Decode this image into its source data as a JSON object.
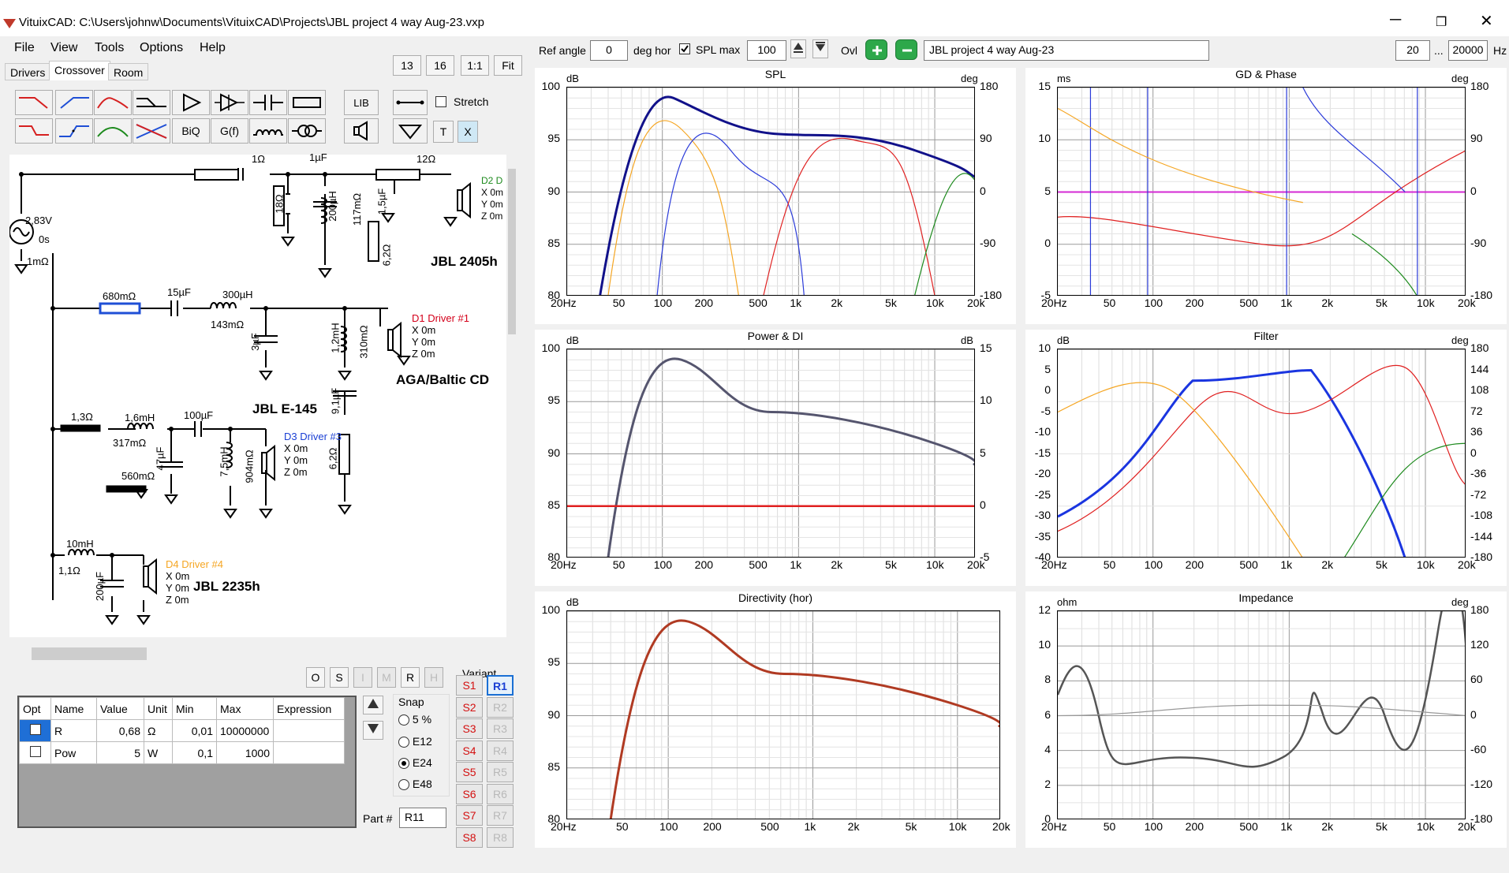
{
  "window": {
    "title": "VituixCAD: C:\\Users\\johnw\\Documents\\VituixCAD\\Projects\\JBL project 4 way Aug-23.vxp",
    "minimize": "─",
    "maximize": "❐",
    "close": "✕"
  },
  "menu": [
    "File",
    "View",
    "Tools",
    "Options",
    "Help"
  ],
  "tabs": [
    "Drivers",
    "Crossover",
    "Room"
  ],
  "top_buttons": {
    "b13": "13",
    "b16": "16",
    "b11": "1:1",
    "fit": "Fit"
  },
  "toolbar": {
    "lib": "LIB",
    "stretch": "Stretch",
    "biq": "BiQ",
    "gf": "G(f)",
    "t": "T",
    "x": "X"
  },
  "header": {
    "ref_angle_label": "Ref angle",
    "ref_angle_value": "0",
    "deg_hor": "deg hor",
    "spl_max_label": "SPL max",
    "spl_max_value": "100",
    "ovl": "Ovl",
    "project": "JBL project 4 way Aug-23",
    "f_min": "20",
    "ellipsis": "...",
    "f_max": "20000",
    "hz": "Hz"
  },
  "schematic": {
    "labels": [
      "1Ω",
      "1µF",
      "12Ω",
      "18Ω",
      "200µH",
      "117mΩ",
      "1,5µF",
      "6,2Ω",
      "2,83V",
      "0s",
      "1mΩ",
      "680mΩ",
      "15µF",
      "300µH",
      "143mΩ",
      "3µF",
      "1,2mH",
      "310mΩ",
      "9,1µF",
      "6,2Ω",
      "1,3Ω",
      "1,6mH",
      "317mΩ",
      "100µF",
      "47µF",
      "560mΩ",
      "7,5mH",
      "904mΩ",
      "10mH",
      "1,1Ω",
      "200µF"
    ],
    "d2": {
      "name": "D2 D",
      "x": "X 0m",
      "y": "Y 0m",
      "z": "Z 0m",
      "model": "JBL 2405h"
    },
    "d1": {
      "name": "D1 Driver #1",
      "x": "X 0m",
      "y": "Y 0m",
      "z": "Z 0m",
      "model": "AGA/Baltic CD"
    },
    "d3": {
      "name": "D3 Driver #3",
      "x": "X 0m",
      "y": "Y 0m",
      "z": "Z 0m",
      "model": "JBL E-145"
    },
    "d4": {
      "name": "D4 Driver #4",
      "x": "X 0m",
      "y": "Y 0m",
      "z": "Z 0m",
      "model": "JBL 2235h"
    },
    "colors": {
      "d1": "#d4001a",
      "d2": "#1d8a1d",
      "d3": "#1a3fd4",
      "d4": "#f5a623"
    }
  },
  "mini_buttons": [
    "O",
    "S",
    "I",
    "M",
    "R",
    "H"
  ],
  "props_table": {
    "headers": [
      "Opt",
      "Name",
      "Value",
      "Unit",
      "Min",
      "Max",
      "Expression"
    ],
    "rows": [
      {
        "name": "R",
        "value": "0,68",
        "unit": "Ω",
        "min": "0,01",
        "max": "10000000",
        "expr": ""
      },
      {
        "name": "Pow",
        "value": "5",
        "unit": "W",
        "min": "0,1",
        "max": "1000",
        "expr": ""
      }
    ]
  },
  "snap": {
    "label": "Snap",
    "options": [
      "5 %",
      "E12",
      "E24",
      "E48"
    ],
    "selected": "E24"
  },
  "part": {
    "label": "Part #",
    "value": "R11"
  },
  "variant": {
    "label": "Variant",
    "s": [
      "S1",
      "S2",
      "S3",
      "S4",
      "S5",
      "S6",
      "S7",
      "S8"
    ],
    "r": [
      "R1",
      "R2",
      "R3",
      "R4",
      "R5",
      "R6",
      "R7",
      "R8"
    ]
  },
  "graphs": {
    "xticks": [
      "20Hz",
      "50",
      "100",
      "200",
      "500",
      "1k",
      "2k",
      "5k",
      "10k",
      "20k"
    ],
    "spl": {
      "title": "SPL",
      "lunit": "dB",
      "runit": "deg",
      "yl": [
        "100",
        "95",
        "90",
        "85",
        "80"
      ],
      "yr": [
        "180",
        "90",
        "0",
        "-90",
        "-180"
      ]
    },
    "gd": {
      "title": "GD & Phase",
      "lunit": "ms",
      "runit": "deg",
      "yl": [
        "15",
        "10",
        "5",
        "0",
        "-5"
      ],
      "yr": [
        "180",
        "90",
        "0",
        "-90",
        "-180"
      ]
    },
    "power": {
      "title": "Power & DI",
      "lunit": "dB",
      "runit": "dB",
      "yl": [
        "100",
        "95",
        "90",
        "85",
        "80"
      ],
      "yr": [
        "15",
        "10",
        "5",
        "0",
        "-5"
      ]
    },
    "filter": {
      "title": "Filter",
      "lunit": "dB",
      "runit": "deg",
      "yl": [
        "10",
        "5",
        "0",
        "-5",
        "-10",
        "-15",
        "-20",
        "-25",
        "-30",
        "-35",
        "-40"
      ],
      "yr": [
        "180",
        "144",
        "108",
        "72",
        "36",
        "0",
        "-36",
        "-72",
        "-108",
        "-144",
        "-180"
      ]
    },
    "dir": {
      "title": "Directivity (hor)",
      "lunit": "dB",
      "yl": [
        "100",
        "95",
        "90",
        "85",
        "80"
      ]
    },
    "imp": {
      "title": "Impedance",
      "lunit": "ohm",
      "runit": "deg",
      "yl": [
        "12",
        "10",
        "8",
        "6",
        "4",
        "2",
        "0"
      ],
      "yr": [
        "180",
        "120",
        "60",
        "0",
        "-60",
        "-120",
        "-180"
      ]
    }
  }
}
